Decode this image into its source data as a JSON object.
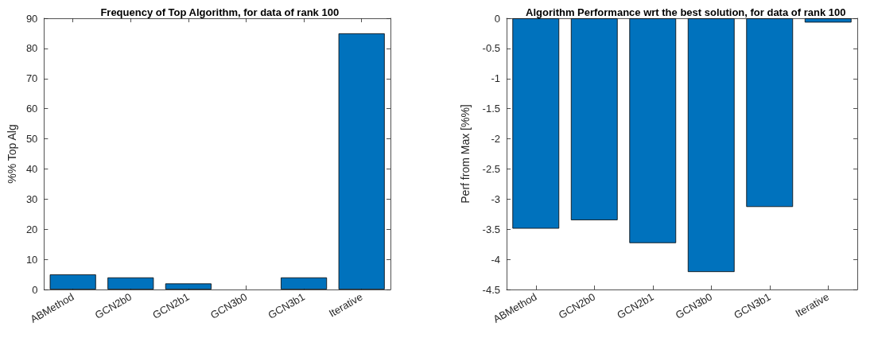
{
  "chart_data": [
    {
      "type": "bar",
      "title": "Frequency of Top Algorithm, for data of rank 100",
      "ylabel": "%% Top Alg",
      "categories": [
        "ABMethod",
        "GCN2b0",
        "GCN2b1",
        "GCN3b0",
        "GCN3b1",
        "Iterative"
      ],
      "values": [
        5,
        4,
        2,
        0,
        4,
        85
      ],
      "color": "#0072bd",
      "ylim": [
        0,
        90
      ],
      "yticks": [
        0,
        10,
        20,
        30,
        40,
        50,
        60,
        70,
        80,
        90
      ]
    },
    {
      "type": "bar",
      "title": "Algorithm Performance wrt the best solution, for data of rank 100",
      "ylabel": "Perf from Max [%%]",
      "categories": [
        "ABMethod",
        "GCN2b0",
        "GCN2b1",
        "GCN3b0",
        "GCN3b1",
        "Iterative"
      ],
      "values": [
        -3.49,
        -3.35,
        -3.73,
        -4.21,
        -3.13,
        -0.07
      ],
      "color": "#0072bd",
      "ylim": [
        -4.5,
        0
      ],
      "yticks": [
        -4.5,
        -4,
        -3.5,
        -3,
        -2.5,
        -2,
        -1.5,
        -1,
        -0.5,
        0
      ]
    }
  ]
}
